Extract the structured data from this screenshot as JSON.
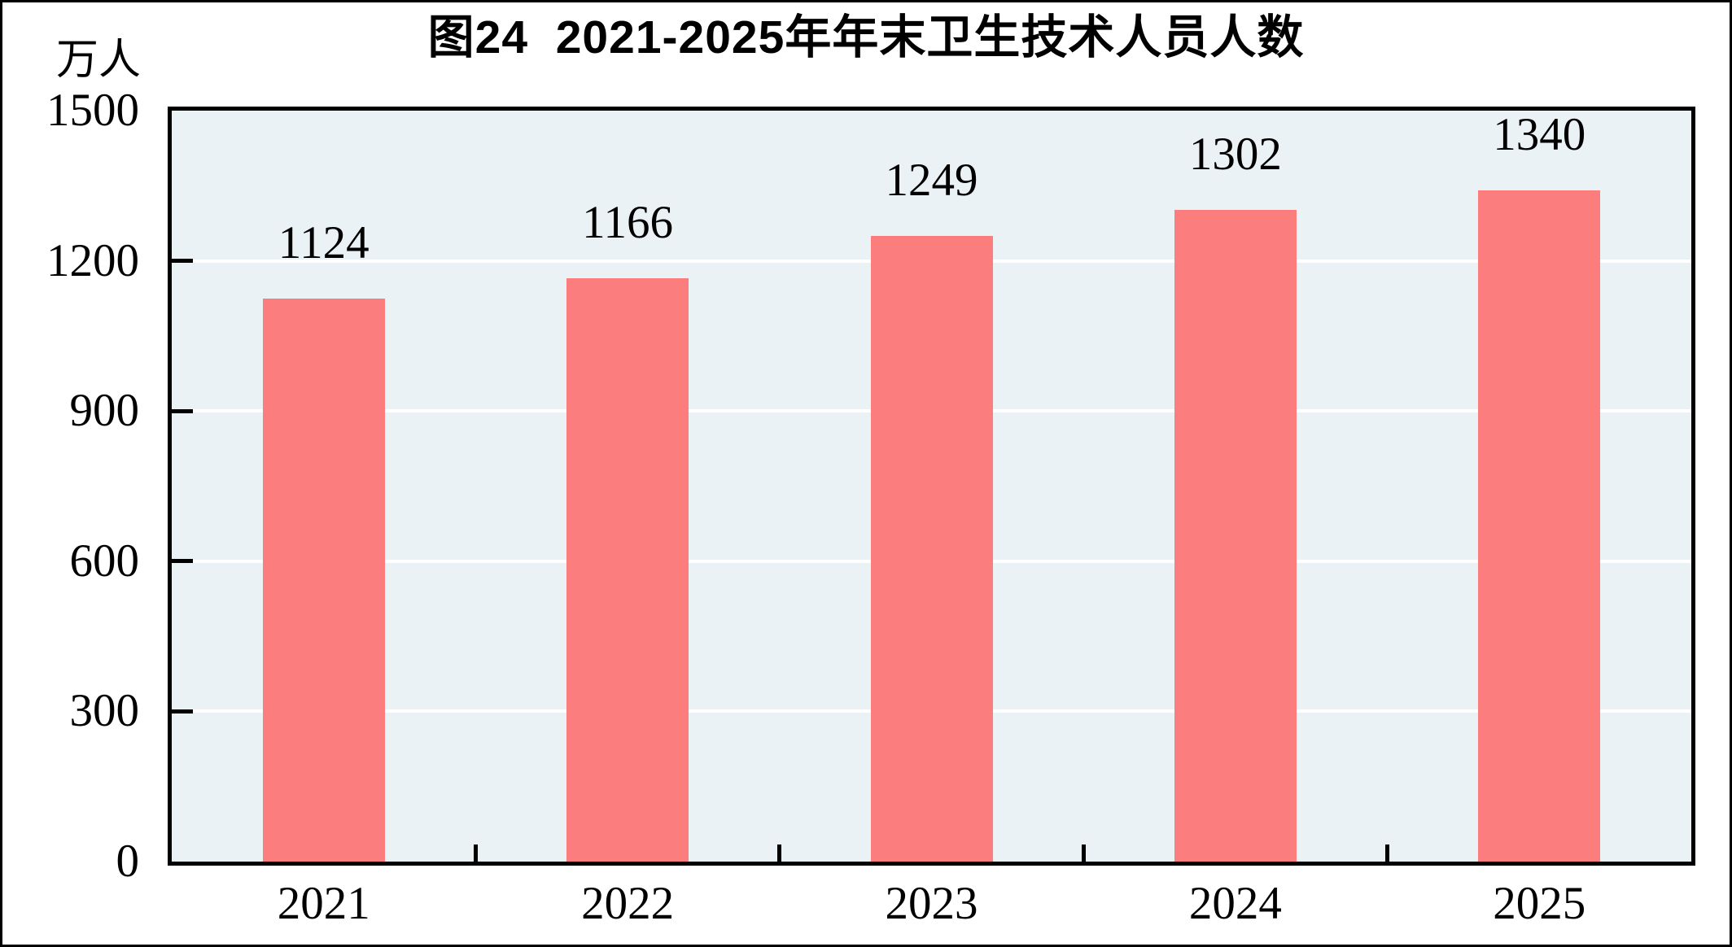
{
  "chart_data": {
    "type": "bar",
    "title": "图24  2021-2025年年末卫生技术人员人数",
    "ylabel": "万人",
    "xlabel": "",
    "categories": [
      "2021",
      "2022",
      "2023",
      "2024",
      "2025"
    ],
    "values": [
      1124,
      1166,
      1249,
      1302,
      1340
    ],
    "data_labels": [
      "1124",
      "1166",
      "1249",
      "1302",
      "1340"
    ],
    "ylim": [
      0,
      1500
    ],
    "yticks": [
      0,
      300,
      600,
      900,
      1200,
      1500
    ],
    "grid": "horizontal white lines at 300/600/900/1200",
    "legend": "none",
    "colors": {
      "bar_fill": "#fc7d7d",
      "plot_background": "#ebf2f6",
      "gridline": "#ffffff",
      "axis_border": "#000000",
      "text": "#000000",
      "page_background": "#ffffff"
    }
  }
}
